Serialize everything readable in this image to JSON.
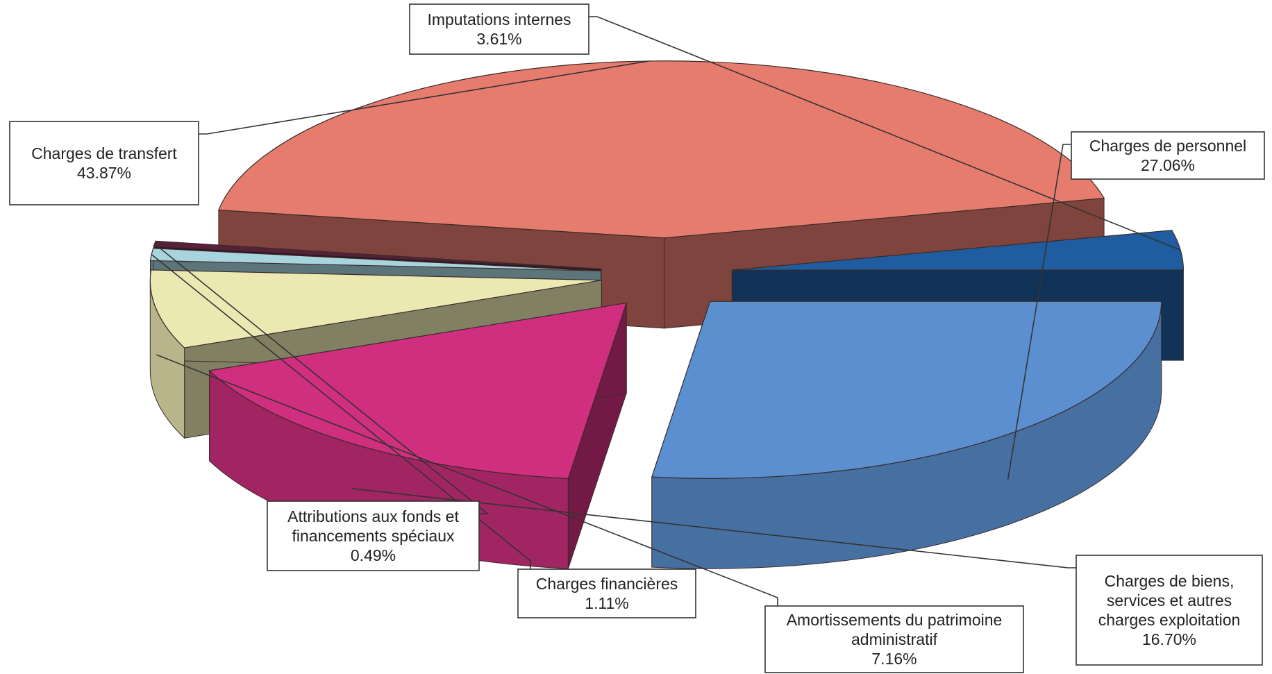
{
  "chart_data": {
    "type": "pie",
    "title": "",
    "legend": "none",
    "unit": "%",
    "slices": [
      {
        "label": [
          "Charges de personnel"
        ],
        "value": 27.06,
        "display": "27.06%",
        "color": "#5b8fd0"
      },
      {
        "label": [
          "Charges de biens,",
          "services et autres",
          "charges exploitation"
        ],
        "value": 16.7,
        "display": "16.70%",
        "color": "#cf2f7e"
      },
      {
        "label": [
          "Amortissements du patrimoine",
          "administratif"
        ],
        "value": 7.16,
        "display": "7.16%",
        "color": "#ece8b2"
      },
      {
        "label": [
          "Charges financières"
        ],
        "value": 1.11,
        "display": "1.11%",
        "color": "#a8d4dd"
      },
      {
        "label": [
          "Attributions aux fonds et",
          "financements spéciaux"
        ],
        "value": 0.49,
        "display": "0.49%",
        "color": "#5a1f3b"
      },
      {
        "label": [
          "Charges de transfert"
        ],
        "value": 43.87,
        "display": "43.87%",
        "color": "#e67c6e"
      },
      {
        "label": [
          "Imputations internes"
        ],
        "value": 3.61,
        "display": "3.61%",
        "color": "#1f5da0"
      }
    ]
  }
}
